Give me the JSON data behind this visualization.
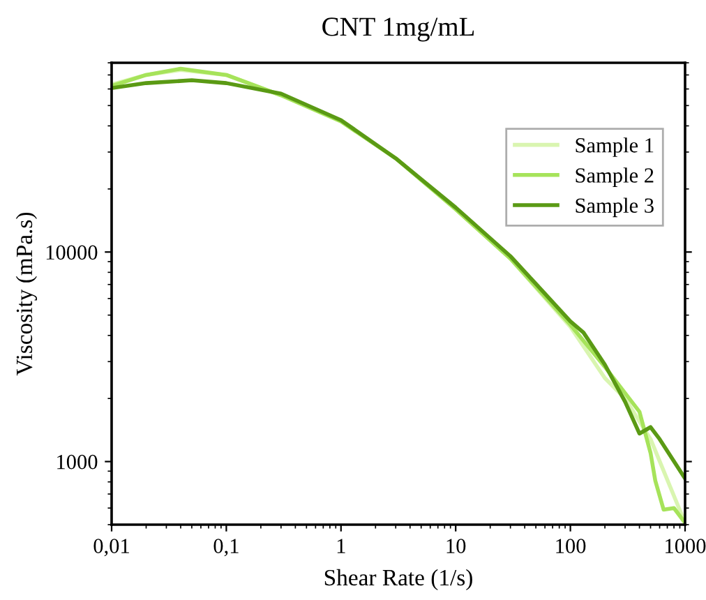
{
  "chart_data": {
    "type": "line",
    "title": "CNT 1mg/mL",
    "xlabel": "Shear Rate (1/s)",
    "ylabel": "Viscosity (mPa.s)",
    "log": "xy",
    "grid": false,
    "legend": "top right",
    "marker": "none",
    "line_style": "solid",
    "xlim": [
      0.01,
      1000
    ],
    "ylim": [
      500,
      80000
    ],
    "xticks": [
      {
        "value": 0.01,
        "label": "0,01"
      },
      {
        "value": 0.1,
        "label": "0,1"
      },
      1,
      10,
      100,
      1000
    ],
    "yticks": [
      1000,
      10000
    ],
    "series": [
      {
        "name": "Sample 1",
        "color": "#d9f5b0",
        "x": [
          0.01,
          0.02,
          0.04,
          0.1,
          0.3,
          1,
          3,
          10,
          30,
          100,
          200,
          300,
          500,
          1000
        ],
        "values": [
          63000,
          70000,
          74000,
          70000,
          56000,
          42000,
          28000,
          16000,
          9300,
          4400,
          2500,
          2000,
          1280,
          510
        ]
      },
      {
        "name": "Sample 2",
        "color": "#a6e35a",
        "x": [
          0.01,
          0.02,
          0.04,
          0.1,
          0.3,
          1,
          3,
          10,
          30,
          100,
          200,
          400,
          500,
          550,
          650,
          800,
          1000
        ],
        "values": [
          62000,
          70000,
          75000,
          70000,
          56000,
          42000,
          28000,
          16000,
          9300,
          4500,
          2830,
          1730,
          1100,
          810,
          590,
          600,
          510
        ]
      },
      {
        "name": "Sample 3",
        "color": "#5a9a14",
        "x": [
          0.01,
          0.02,
          0.05,
          0.1,
          0.3,
          1,
          3,
          10,
          30,
          100,
          130,
          200,
          300,
          400,
          500,
          600,
          1000
        ],
        "values": [
          60600,
          64000,
          66000,
          64000,
          57000,
          42600,
          28000,
          16300,
          9550,
          4670,
          4130,
          2900,
          1930,
          1360,
          1460,
          1280,
          830
        ]
      }
    ]
  }
}
